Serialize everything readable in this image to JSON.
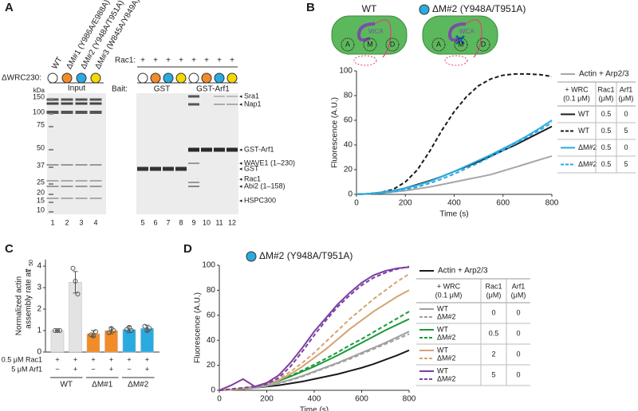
{
  "panel_labels": [
    "A",
    "B",
    "C",
    "D"
  ],
  "gels": {
    "construct_label": "ΔWRC230:",
    "constructs": [
      {
        "name": "WT",
        "color": "#ffffff"
      },
      {
        "name": "ΔM#1 (Y986A/E988A)",
        "color": "#f28c28"
      },
      {
        "name": "ΔM#2 (Y948A/T951A)",
        "color": "#29abe2"
      },
      {
        "name": "ΔM#3 (W845A/Y849A)",
        "color": "#f5d800"
      }
    ],
    "input_label": "Input",
    "kda_label": "kDa",
    "markers": [
      150,
      100,
      75,
      50,
      37,
      25,
      20,
      15,
      10
    ],
    "lanes": [
      1,
      2,
      3,
      4,
      5,
      6,
      7,
      8,
      9,
      10,
      11,
      12
    ],
    "rac1_label": "Rac1:",
    "rac1_marks": [
      "+",
      "+",
      "+",
      "+",
      "+",
      "+",
      "+",
      "+"
    ],
    "bait_label": "Bait:",
    "baits": [
      "GST",
      "GST-Arf1"
    ],
    "band_labels": [
      "Sra1",
      "Nap1",
      "GST-Arf1",
      "WAVE1 (1–230)",
      "GST",
      "Rac1",
      "Abi2 (1–158)",
      "HSPC300"
    ]
  },
  "chart_data": [
    {
      "type": "line",
      "cartoon": {
        "titles": [
          "WT",
          "ΔM#2 (Y948A/T951A)"
        ],
        "marker_color": "#29abe2",
        "domains": [
          "A",
          "M",
          "D"
        ],
        "wca": "WCA"
      },
      "x_label": "Time (s)",
      "y_label": "Fluorescence (A.U.)",
      "xlim": [
        0,
        800
      ],
      "ylim": [
        0,
        100
      ],
      "xticks": [
        0,
        200,
        400,
        600,
        800
      ],
      "yticks": [
        0,
        20,
        40,
        60,
        80,
        100
      ],
      "x": [
        0,
        50,
        100,
        150,
        200,
        250,
        300,
        350,
        400,
        450,
        500,
        550,
        600,
        650,
        700,
        750,
        800
      ],
      "legend_header": [
        [
          "+ WRC",
          "(0.1 μM)"
        ],
        [
          "Rac1",
          "(μM)"
        ],
        [
          "Arf1",
          "(μM)"
        ]
      ],
      "series": [
        {
          "name": "Actin + Arp2/3",
          "color": "#a6a6a6",
          "dashed": false,
          "values": [
            0,
            0.5,
            1,
            2,
            3,
            4.5,
            6,
            8,
            10,
            12,
            14,
            16,
            19,
            22,
            25,
            28,
            31
          ]
        },
        {
          "name": "WT",
          "color": "#1a1a1a",
          "dashed": false,
          "rac1": 0.5,
          "arf1": 0,
          "values": [
            0,
            0.5,
            1.5,
            3,
            5,
            8,
            11,
            14.5,
            18.5,
            22.5,
            26.5,
            31,
            35.5,
            40,
            45,
            50,
            55
          ]
        },
        {
          "name": "WT",
          "color": "#1a1a1a",
          "dashed": true,
          "rac1": 0.5,
          "arf1": 5,
          "values": [
            0,
            0.5,
            1.5,
            4,
            10,
            20,
            35,
            52,
            67,
            79,
            88,
            93.5,
            96.5,
            97.5,
            97.5,
            97,
            95.5
          ]
        },
        {
          "name": "ΔM#2",
          "color": "#29abe2",
          "dashed": false,
          "rac1": 0.5,
          "arf1": 0,
          "values": [
            0,
            0.5,
            1.5,
            3,
            5,
            7.5,
            10.5,
            14.5,
            18.5,
            23,
            27.5,
            32,
            37,
            42,
            47.5,
            53.5,
            60
          ]
        },
        {
          "name": "ΔM#2",
          "color": "#29abe2",
          "dashed": true,
          "rac1": 0.5,
          "arf1": 5,
          "values": [
            0,
            0.5,
            1,
            2,
            4,
            6,
            9,
            12.5,
            16.5,
            21,
            25.5,
            30.5,
            35.5,
            41,
            46.5,
            52,
            58
          ]
        }
      ]
    },
    {
      "type": "bar",
      "ylabel_lines": [
        "Normalized actin",
        "assembly rate at "
      ],
      "ylabel_var": "t",
      "ylabel_sub": "50",
      "ylim": [
        0,
        4.3
      ],
      "yticks": [
        0,
        1,
        2,
        3,
        4
      ],
      "values": [
        1.0,
        3.25,
        0.85,
        1.0,
        1.05,
        1.1
      ],
      "errors": [
        0.03,
        0.5,
        0.15,
        0.15,
        0.15,
        0.15
      ],
      "points": [
        [
          1.0,
          1.0,
          1.0
        ],
        [
          3.9,
          3.3,
          2.7
        ],
        [
          0.8,
          0.75,
          0.95
        ],
        [
          0.9,
          1.1,
          1.0
        ],
        [
          1.05,
          1.15,
          1.0
        ],
        [
          1.2,
          1.0,
          1.1
        ]
      ],
      "colors": [
        "#e3e3e3",
        "#e3e3e3",
        "#f28c28",
        "#f28c28",
        "#29abe2",
        "#29abe2"
      ],
      "conditions": [
        {
          "label": "0.5 μM Rac1",
          "marks": [
            "+",
            "+",
            "+",
            "+",
            "+",
            "+"
          ]
        },
        {
          "label": "5 μM Arf1",
          "marks": [
            "−",
            "+",
            "−",
            "+",
            "−",
            "+"
          ]
        }
      ],
      "groups": [
        "WT",
        "ΔM#1",
        "ΔM#2"
      ]
    },
    {
      "type": "line",
      "title": "ΔM#2 (Y948A/T951A)",
      "title_marker_color": "#29abe2",
      "x_label": "Time (s)",
      "y_label": "Fluorescence (A.U.)",
      "xlim": [
        0,
        800
      ],
      "ylim": [
        0,
        100
      ],
      "xticks": [
        0,
        200,
        400,
        600,
        800
      ],
      "yticks": [
        0,
        20,
        40,
        60,
        80,
        100
      ],
      "x": [
        0,
        50,
        100,
        150,
        200,
        250,
        300,
        350,
        400,
        450,
        500,
        550,
        600,
        650,
        700,
        750,
        800
      ],
      "legend_header": [
        [
          "+ WRC",
          "(0.1 μM)"
        ],
        [
          "Rac1",
          "(μM)"
        ],
        [
          "Arf1",
          "(μM)"
        ]
      ],
      "series": [
        {
          "name": "Actin + Arp2/3",
          "color": "#1a1a1a",
          "dashed": false,
          "values": [
            0,
            0.5,
            1,
            2,
            3,
            4,
            5.5,
            7,
            9,
            11,
            13,
            15.5,
            18,
            21,
            24.5,
            28,
            32
          ]
        },
        {
          "name": "WT",
          "color": "#a0a0a0",
          "dashed": false,
          "rac1": 0,
          "arf1": 0,
          "values": [
            0,
            0.5,
            1,
            2,
            3.5,
            6,
            8.5,
            11.5,
            15,
            18.5,
            22,
            26,
            30,
            34,
            38,
            42.5,
            47
          ]
        },
        {
          "name": "ΔM#2",
          "color": "#a0a0a0",
          "dashed": true,
          "values": [
            0,
            0.5,
            1,
            2,
            3.5,
            5.5,
            8,
            11,
            14.5,
            18,
            21.5,
            25,
            29,
            33,
            37,
            41,
            45
          ]
        },
        {
          "name": "WT",
          "color": "#1a9a3a",
          "dashed": false,
          "rac1": 0.5,
          "arf1": 0,
          "values": [
            0,
            0.5,
            1.5,
            3,
            5,
            7.5,
            11,
            15,
            19,
            23.5,
            28,
            33,
            38,
            43,
            48,
            52.5,
            57
          ]
        },
        {
          "name": "ΔM#2",
          "color": "#1a9a3a",
          "dashed": true,
          "values": [
            0,
            0.5,
            1.5,
            3,
            5,
            8,
            11.5,
            16,
            20.5,
            25.5,
            30.5,
            36,
            41,
            46.5,
            52,
            57.5,
            63
          ]
        },
        {
          "name": "WT",
          "color": "#d4a373",
          "dashed": false,
          "rac1": 2,
          "arf1": 0,
          "values": [
            0,
            0.5,
            1.5,
            3,
            5,
            8,
            13,
            19,
            26,
            33,
            41,
            49,
            56,
            63,
            69,
            75,
            80
          ]
        },
        {
          "name": "ΔM#2",
          "color": "#d4a373",
          "dashed": true,
          "values": [
            0,
            0.5,
            1.5,
            3,
            5.5,
            9,
            15,
            22,
            30,
            39,
            48,
            57,
            65,
            73,
            80,
            87,
            93
          ]
        },
        {
          "name": "WT",
          "color": "#7b3fa0",
          "dashed": false,
          "rac1": 5,
          "arf1": 0,
          "values": [
            0,
            4,
            9,
            3,
            6,
            12,
            22,
            34,
            47,
            58,
            69,
            78,
            86,
            92,
            95.5,
            97.5,
            98.5
          ]
        },
        {
          "name": "ΔM#2",
          "color": "#7b3fa0",
          "dashed": true,
          "values": [
            0,
            1,
            2,
            3,
            5,
            10,
            19,
            31,
            44,
            56,
            67,
            76,
            84,
            90,
            94,
            97,
            99
          ]
        }
      ]
    }
  ]
}
